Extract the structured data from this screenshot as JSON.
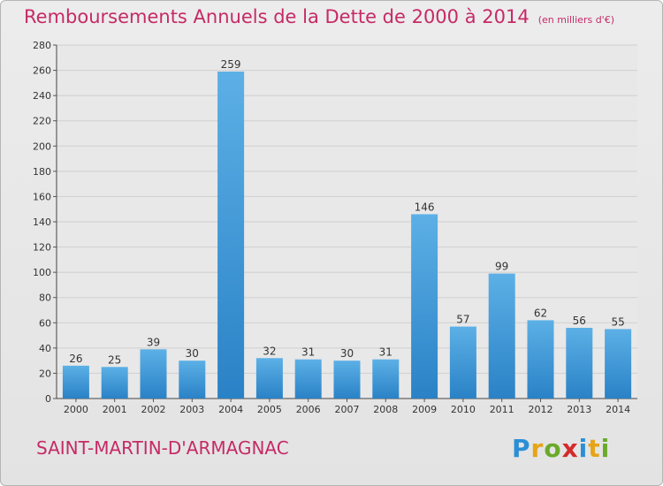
{
  "title": "Remboursements Annuels de la Dette de 2000 à 2014",
  "subtitle": "(en milliers d'€)",
  "commune": "SAINT-MARTIN-D'ARMAGNAC",
  "brand": "Proxiti",
  "colors": {
    "title": "#c62a66",
    "bar_top": "#5cb0e6",
    "bar_bottom": "#2a82c6",
    "grid": "#cfcfcf"
  },
  "chart_data": {
    "type": "bar",
    "title": "Remboursements Annuels de la Dette de 2000 à 2014",
    "subtitle": "(en milliers d'€)",
    "categories": [
      "2000",
      "2001",
      "2002",
      "2003",
      "2004",
      "2005",
      "2006",
      "2007",
      "2008",
      "2009",
      "2010",
      "2011",
      "2012",
      "2013",
      "2014"
    ],
    "values": [
      26,
      25,
      39,
      30,
      259,
      32,
      31,
      30,
      31,
      146,
      57,
      99,
      62,
      56,
      55
    ],
    "ylim": [
      0,
      280
    ],
    "yticks": [
      0,
      20,
      40,
      60,
      80,
      100,
      120,
      140,
      160,
      180,
      200,
      220,
      240,
      260,
      280
    ],
    "grid": true,
    "legend": "none"
  }
}
